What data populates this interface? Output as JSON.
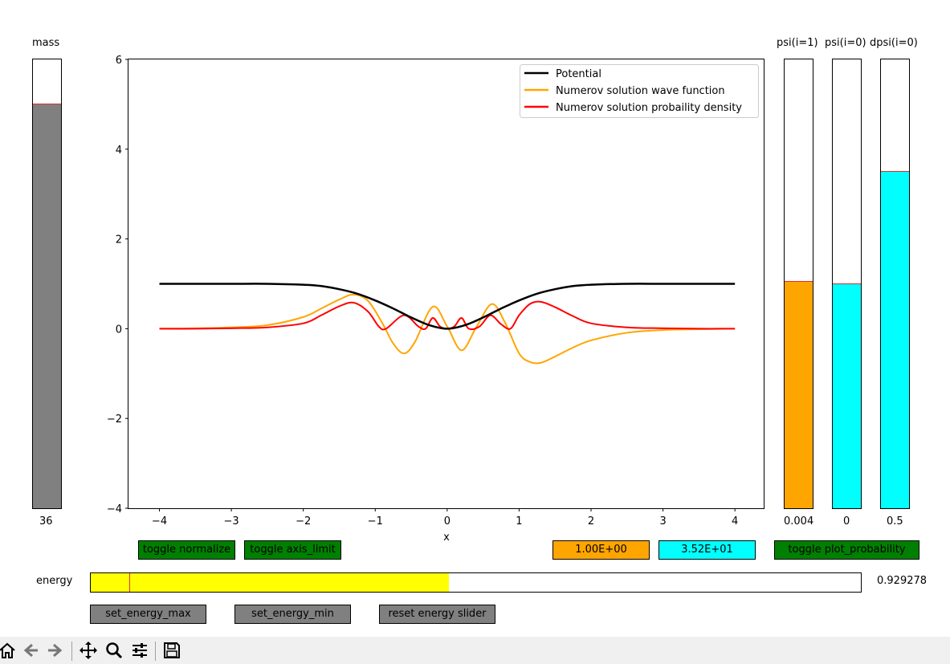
{
  "mass": {
    "title": "mass",
    "value_label": "36",
    "fill_fraction": 0.9,
    "fill_color": "#808080"
  },
  "psi1": {
    "title": "psi(i=1)",
    "value_label": "0.004",
    "fill_fraction": 0.505,
    "fill_color": "#ffa500"
  },
  "psi0": {
    "title": "psi(i=0)",
    "value_label": "0",
    "fill_fraction": 0.5,
    "fill_color": "#00ffff"
  },
  "dpsi0": {
    "title": "dpsi(i=0)",
    "value_label": "0.5",
    "fill_fraction": 0.75,
    "fill_color": "#00ffff"
  },
  "buttons": {
    "toggle_normalize": "toggle normalize",
    "toggle_axis_limit": "toggle axis_limit",
    "orange_value": "1.00E+00",
    "cyan_value": "3.52E+01",
    "toggle_plot_probability": "toggle plot_probability",
    "set_energy_max": "set_energy_max",
    "set_energy_min": "set_energy_min",
    "reset_energy_slider": "reset energy slider"
  },
  "energy": {
    "label": "energy",
    "value_label": "0.929278",
    "fill_fraction": 0.465,
    "marker_fraction": 0.05,
    "fill_color": "#ffff00"
  },
  "toolbar_icons": [
    "home-icon",
    "back-icon",
    "forward-icon",
    "pan-icon",
    "zoom-icon",
    "configure-icon",
    "save-icon"
  ],
  "chart_data": {
    "type": "line",
    "xlabel": "x",
    "ylabel": "",
    "xlim": [
      -4.43,
      4.4
    ],
    "ylim": [
      -4,
      6
    ],
    "xticks": [
      -4,
      -3,
      -2,
      -1,
      0,
      1,
      2,
      3,
      4
    ],
    "yticks": [
      -4,
      -2,
      0,
      2,
      4,
      6
    ],
    "grid": false,
    "legend_position": "top-right",
    "x_range": [
      -4,
      4
    ],
    "series": [
      {
        "name": "Potential",
        "color": "#000000",
        "x": [
          -4,
          -3.5,
          -3,
          -2.5,
          -2,
          -1.75,
          -1.5,
          -1.25,
          -1,
          -0.75,
          -0.5,
          -0.25,
          0,
          0.25,
          0.5,
          0.75,
          1,
          1.25,
          1.5,
          1.75,
          2,
          2.5,
          3,
          3.5,
          4
        ],
        "y": [
          1,
          1,
          1,
          1,
          0.98,
          0.95,
          0.88,
          0.78,
          0.63,
          0.45,
          0.25,
          0.08,
          0,
          0.08,
          0.25,
          0.45,
          0.63,
          0.78,
          0.88,
          0.95,
          0.98,
          1,
          1,
          1,
          1
        ]
      },
      {
        "name": "Numerov solution wave function",
        "color": "#ffa500",
        "x": [
          -4,
          -3.5,
          -3,
          -2.5,
          -2,
          -1.75,
          -1.5,
          -1.3,
          -1.1,
          -0.9,
          -0.75,
          -0.6,
          -0.45,
          -0.2,
          0,
          0.2,
          0.4,
          0.62,
          0.8,
          1,
          1.15,
          1.3,
          1.5,
          1.75,
          2,
          2.5,
          3,
          3.5,
          4
        ],
        "y": [
          0,
          0.01,
          0.03,
          0.08,
          0.26,
          0.45,
          0.65,
          0.76,
          0.62,
          0.12,
          -0.33,
          -0.55,
          -0.3,
          0.49,
          0.05,
          -0.48,
          0.02,
          0.55,
          0.15,
          -0.55,
          -0.74,
          -0.76,
          -0.62,
          -0.42,
          -0.26,
          -0.09,
          -0.03,
          -0.01,
          0
        ]
      },
      {
        "name": "Numerov solution probaility density",
        "color": "#ff0000",
        "x": [
          -4,
          -3.5,
          -3,
          -2.5,
          -2,
          -1.75,
          -1.5,
          -1.3,
          -1.1,
          -0.95,
          -0.85,
          -0.6,
          -0.4,
          -0.3,
          -0.2,
          -0.1,
          0,
          0.1,
          0.2,
          0.3,
          0.45,
          0.6,
          0.75,
          0.88,
          1,
          1.15,
          1.3,
          1.5,
          1.75,
          2,
          2.5,
          3,
          3.5,
          4
        ],
        "y": [
          0,
          0,
          0.01,
          0.03,
          0.12,
          0.3,
          0.5,
          0.58,
          0.38,
          0.05,
          0,
          0.3,
          0.05,
          0,
          0.24,
          0.05,
          0,
          0.05,
          0.24,
          0,
          0.05,
          0.3,
          0.1,
          0,
          0.3,
          0.55,
          0.6,
          0.48,
          0.28,
          0.12,
          0.03,
          0.01,
          0,
          0
        ]
      }
    ]
  }
}
